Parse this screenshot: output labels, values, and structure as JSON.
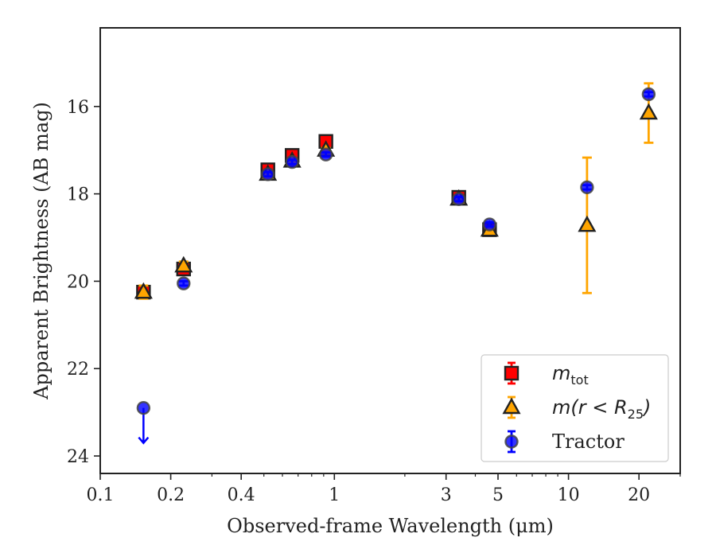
{
  "chart_data": {
    "type": "scatter",
    "title": "",
    "xlabel": "Observed-frame Wavelength (μm)",
    "ylabel": "Apparent Brightness (AB mag)",
    "xscale": "log",
    "xlim": [
      0.1,
      30
    ],
    "ylim": [
      24.4,
      14.2
    ],
    "y_inverted": true,
    "x_ticks": [
      0.1,
      0.2,
      0.4,
      1,
      3,
      5,
      10,
      20
    ],
    "x_tick_labels": [
      "0.1",
      "0.2",
      "0.4",
      "1",
      "3",
      "5",
      "10",
      "20"
    ],
    "y_ticks": [
      16,
      18,
      20,
      22,
      24
    ],
    "y_tick_labels": [
      "16",
      "18",
      "20",
      "22",
      "24"
    ],
    "grid": false,
    "legend_position": "bottom-right",
    "series": [
      {
        "name": "m_tot",
        "legend_main": "m",
        "legend_sub": "tot",
        "marker": "square",
        "face_color": "#ff0000",
        "edge_color": "#222222",
        "error_color": "#ff0000",
        "points": [
          {
            "x": 0.153,
            "y": 20.25,
            "err": 0.1
          },
          {
            "x": 0.227,
            "y": 19.72,
            "err": 0.1
          },
          {
            "x": 0.52,
            "y": 17.45,
            "err": 0.05
          },
          {
            "x": 0.66,
            "y": 17.12,
            "err": 0.05
          },
          {
            "x": 0.92,
            "y": 16.8,
            "err": 0.05
          },
          {
            "x": 3.4,
            "y": 18.08,
            "err": 0.05
          },
          {
            "x": 4.6,
            "y": 18.82,
            "err": 0.05
          }
        ]
      },
      {
        "name": "m(r < R_25)",
        "legend_main": "m(r < R",
        "legend_sub": "25",
        "legend_close": ")",
        "marker": "triangle",
        "face_color": "#ffa500",
        "edge_color": "#222222",
        "error_color": "#ffa500",
        "points": [
          {
            "x": 0.153,
            "y": 20.25,
            "err": 0.15
          },
          {
            "x": 0.227,
            "y": 19.65,
            "err": 0.1
          },
          {
            "x": 0.52,
            "y": 17.55,
            "err": 0.05
          },
          {
            "x": 0.66,
            "y": 17.25,
            "err": 0.05
          },
          {
            "x": 0.92,
            "y": 17.0,
            "err": 0.05
          },
          {
            "x": 3.4,
            "y": 18.12,
            "err": 0.05
          },
          {
            "x": 4.6,
            "y": 18.83,
            "err": 0.05
          },
          {
            "x": 12.0,
            "y": 18.72,
            "err": 1.55
          },
          {
            "x": 22.0,
            "y": 16.15,
            "err": 0.68
          }
        ]
      },
      {
        "name": "Tractor",
        "legend_main": "Tractor",
        "marker": "circle",
        "face_color": "#0000ff",
        "edge_color": "#444444",
        "error_color": "#0000ff",
        "points": [
          {
            "x": 0.153,
            "y": 22.9,
            "upper_limit": true
          },
          {
            "x": 0.227,
            "y": 20.05,
            "err": 0.05
          },
          {
            "x": 0.52,
            "y": 17.55,
            "err": 0.05
          },
          {
            "x": 0.66,
            "y": 17.27,
            "err": 0.05
          },
          {
            "x": 0.92,
            "y": 17.1,
            "err": 0.05
          },
          {
            "x": 3.4,
            "y": 18.12,
            "err": 0.05
          },
          {
            "x": 4.6,
            "y": 18.7,
            "err": 0.05
          },
          {
            "x": 12.0,
            "y": 17.85,
            "err": 0.05
          },
          {
            "x": 22.0,
            "y": 15.72,
            "err": 0.05
          }
        ]
      }
    ]
  }
}
